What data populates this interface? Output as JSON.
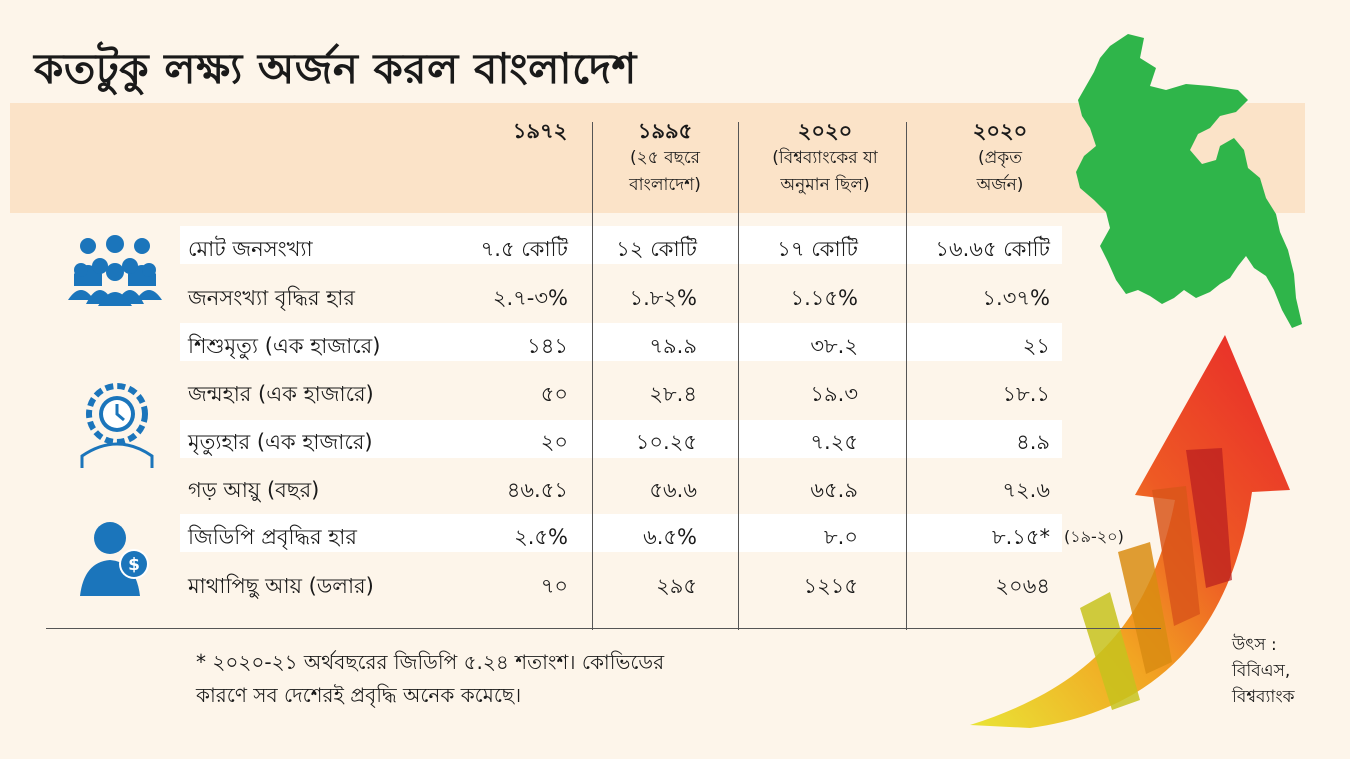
{
  "title": "কতটুকু লক্ষ্য অর্জন করল বাংলাদেশ",
  "colors": {
    "header_band": "#fbe3c8",
    "row_band": "#ffffff",
    "map_green": "#2fb54a",
    "icon_blue": "#1b75bb",
    "arrow_red": "#e8262b",
    "arrow_yellow": "#e9e436"
  },
  "icons": [
    "people-group-icon",
    "clock-gear-person-icon",
    "dollar-person-icon",
    "bangladesh-map",
    "rising-arrow"
  ],
  "chart_data": {
    "type": "table",
    "columns": [
      {
        "year": "১৯৭২",
        "sub1": "",
        "sub2": ""
      },
      {
        "year": "১৯৯৫",
        "sub1": "(২৫ বছরে",
        "sub2": "বাংলাদেশ)"
      },
      {
        "year": "২০২০",
        "sub1": "(বিশ্বব্যাংকের যা",
        "sub2": "অনুমান ছিল)"
      },
      {
        "year": "২০২০",
        "sub1": "(প্রকৃত",
        "sub2": "অর্জন)"
      }
    ],
    "rows": [
      {
        "label": "মোট জনসংখ্যা",
        "values": [
          "৭.৫ কোটি",
          "১২ কোটি",
          "১৭ কোটি",
          "১৬.৬৫ কোটি"
        ]
      },
      {
        "label": "জনসংখ্যা বৃদ্ধির হার",
        "values": [
          "২.৭-৩%",
          "১.৮২%",
          "১.১৫%",
          "১.৩৭%"
        ]
      },
      {
        "label": "শিশুমৃত্যু (এক হাজারে)",
        "values": [
          "১৪১",
          "৭৯.৯",
          "৩৮.২",
          "২১"
        ]
      },
      {
        "label": "জন্মহার (এক হাজারে)",
        "values": [
          "৫০",
          "২৮.৪",
          "১৯.৩",
          "১৮.১"
        ]
      },
      {
        "label": "মৃত্যুহার (এক হাজারে)",
        "values": [
          "২০",
          "১০.২৫",
          "৭.২৫",
          "৪.৯"
        ]
      },
      {
        "label": "গড় আয়ু (বছর)",
        "values": [
          "৪৬.৫১",
          "৫৬.৬",
          "৬৫.৯",
          "৭২.৬"
        ]
      },
      {
        "label": "জিডিপি প্রবৃদ্ধির হার",
        "values": [
          "২.৫%",
          "৬.৫%",
          "৮.০",
          "৮.১৫*"
        ],
        "note": "(১৯-২০)"
      },
      {
        "label": "মাথাপিছু আয় (ডলার)",
        "values": [
          "৭০",
          "২৯৫",
          "১২১৫",
          "২০৬৪"
        ]
      }
    ]
  },
  "footnote": {
    "line1": "* ২০২০-২১ অর্থবছরের জিডিপি ৫.২৪ শতাংশ। কোভিডের",
    "line2": "কারণে সব দেশেরই প্রবৃদ্ধি অনেক কমেছে।"
  },
  "source": {
    "line1": "উৎস :",
    "line2": "বিবিএস,",
    "line3": "বিশ্বব্যাংক"
  }
}
